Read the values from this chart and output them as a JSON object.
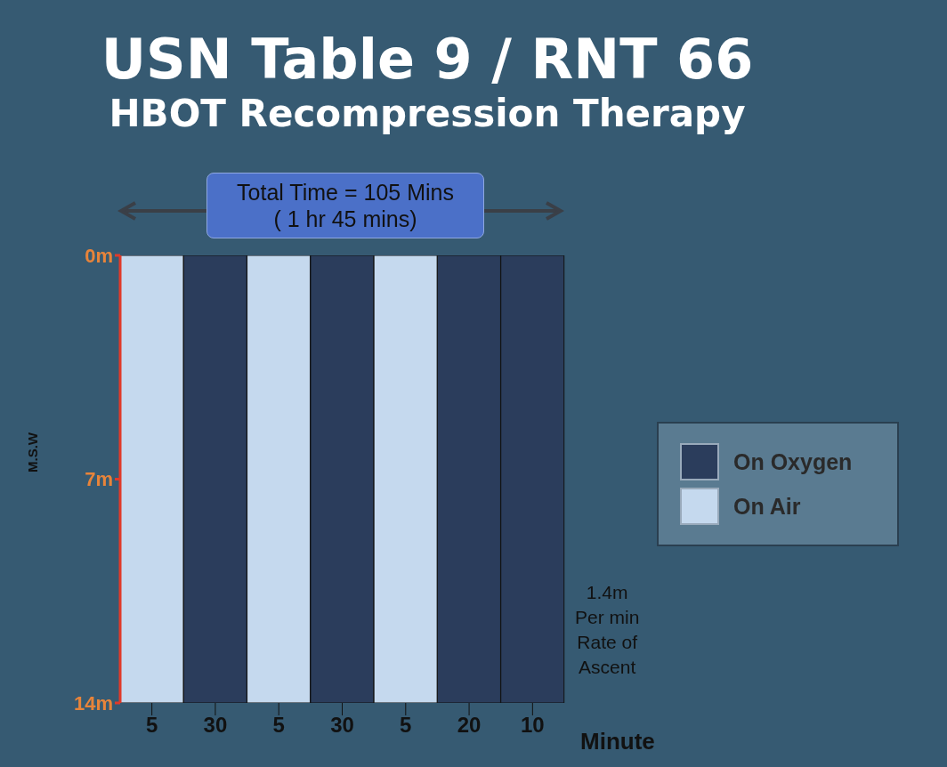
{
  "chart_data": {
    "type": "bar",
    "stacked": true,
    "title": "USN Table 9 / RNT 66",
    "subtitle": "HBOT Recompression Therapy",
    "xlabel": "Minute",
    "ylabel": "M.S.W",
    "categories": [
      "5",
      "30",
      "5",
      "30",
      "5",
      "20",
      "10"
    ],
    "series": [
      {
        "name": "On Oxygen",
        "color": "#2b3d5c",
        "values": [
          null,
          14,
          null,
          14,
          null,
          14,
          14
        ]
      },
      {
        "name": "On Air",
        "color": "#c5d9ee",
        "values": [
          14,
          null,
          14,
          null,
          14,
          null,
          null
        ]
      }
    ],
    "ylim": [
      14,
      0
    ],
    "yticks": [
      {
        "value": 0,
        "label": "0m"
      },
      {
        "value": 7,
        "label": "7m"
      },
      {
        "value": 14,
        "label": "14m"
      }
    ],
    "annotations": [
      "Total Time = 105 Mins\n( 1 hr 45 mins)",
      "1.4m\nPer min\nRate of\nAscent"
    ],
    "grid": false,
    "legend": "right"
  }
}
